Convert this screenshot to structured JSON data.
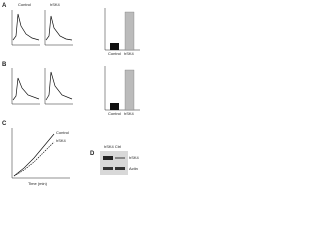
{
  "panels": [
    {
      "label": "A",
      "titles": [
        "Control",
        "hSK4"
      ],
      "bars": [
        "Control",
        "hSK4"
      ]
    },
    {
      "label": "B",
      "bars": [
        "Control",
        "hSK4"
      ]
    },
    {
      "label": "C",
      "legend": [
        "Control",
        "hSK4"
      ],
      "x_label": "Time (min)"
    },
    {
      "label": "D",
      "lanes": "hSK4 Ctrl",
      "bands": [
        "hSK4",
        "Actin"
      ]
    }
  ]
}
